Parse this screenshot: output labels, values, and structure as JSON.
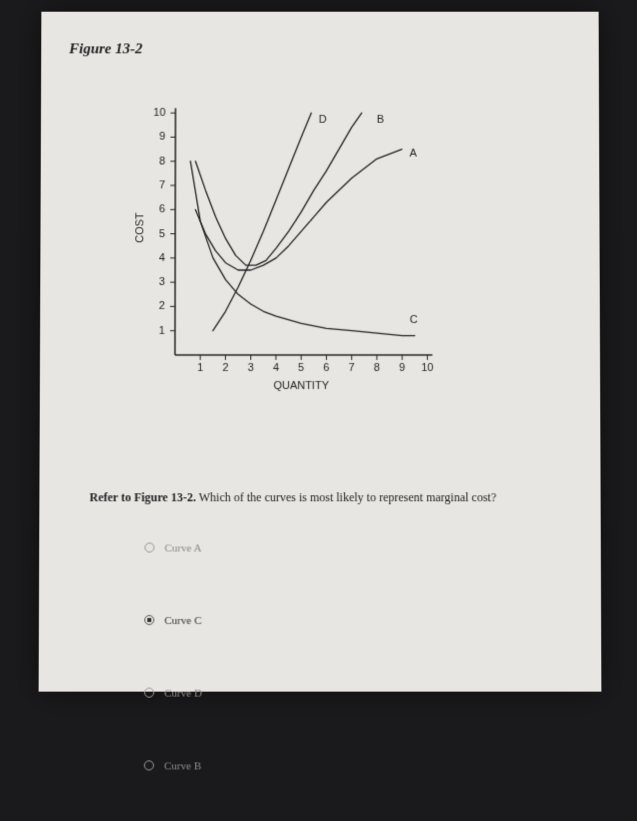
{
  "figure_title": "Figure 13-2",
  "question_prefix": "Refer to Figure 13-2.",
  "question_text": " Which of the curves is most likely to represent marginal cost?",
  "options": [
    {
      "label": "Curve A",
      "selected": false
    },
    {
      "label": "Curve C",
      "selected": true
    },
    {
      "label": "Curve D",
      "selected": false
    },
    {
      "label": "Curve B",
      "selected": false
    }
  ],
  "chart": {
    "type": "line",
    "xlim": [
      0,
      10.5
    ],
    "ylim": [
      0,
      10.5
    ],
    "xticks": [
      1,
      2,
      3,
      4,
      5,
      6,
      7,
      8,
      9,
      10
    ],
    "yticks": [
      1,
      2,
      3,
      4,
      5,
      6,
      7,
      8,
      9,
      10
    ],
    "xlabel": "QUANTITY",
    "ylabel": "COST",
    "label_fontsize": 11,
    "tick_fontsize": 10,
    "background_color": "#e8e6e2",
    "axis_color": "#222222",
    "line_color": "#222222",
    "line_width": 1.3,
    "tick_len": 5,
    "curves": {
      "A": {
        "label": "A",
        "label_pos": [
          9.3,
          8.2
        ],
        "points": [
          [
            0.8,
            6.0
          ],
          [
            1.2,
            5.0
          ],
          [
            1.6,
            4.3
          ],
          [
            2.0,
            3.8
          ],
          [
            2.5,
            3.5
          ],
          [
            3.0,
            3.5
          ],
          [
            3.5,
            3.7
          ],
          [
            4.0,
            4.0
          ],
          [
            4.5,
            4.5
          ],
          [
            5.0,
            5.1
          ],
          [
            5.5,
            5.7
          ],
          [
            6.0,
            6.3
          ],
          [
            7.0,
            7.3
          ],
          [
            8.0,
            8.1
          ],
          [
            9.0,
            8.5
          ]
        ]
      },
      "B": {
        "label": "B",
        "label_pos": [
          8.0,
          9.6
        ],
        "points": [
          [
            0.8,
            8.0
          ],
          [
            1.2,
            6.8
          ],
          [
            1.6,
            5.7
          ],
          [
            2.0,
            4.8
          ],
          [
            2.4,
            4.1
          ],
          [
            2.8,
            3.7
          ],
          [
            3.2,
            3.7
          ],
          [
            3.6,
            3.9
          ],
          [
            4.0,
            4.4
          ],
          [
            4.5,
            5.1
          ],
          [
            5.0,
            5.9
          ],
          [
            5.5,
            6.8
          ],
          [
            6.0,
            7.6
          ],
          [
            6.5,
            8.5
          ],
          [
            7.0,
            9.4
          ],
          [
            7.4,
            10.0
          ]
        ]
      },
      "C": {
        "label": "C",
        "label_pos": [
          9.3,
          1.3
        ],
        "points": [
          [
            0.6,
            8.0
          ],
          [
            1.0,
            5.5
          ],
          [
            1.5,
            4.0
          ],
          [
            2.0,
            3.1
          ],
          [
            2.5,
            2.5
          ],
          [
            3.0,
            2.1
          ],
          [
            3.5,
            1.8
          ],
          [
            4.0,
            1.6
          ],
          [
            5.0,
            1.3
          ],
          [
            6.0,
            1.1
          ],
          [
            7.0,
            1.0
          ],
          [
            8.0,
            0.9
          ],
          [
            9.0,
            0.8
          ],
          [
            9.5,
            0.8
          ]
        ]
      },
      "D": {
        "label": "D",
        "label_pos": [
          5.7,
          9.6
        ],
        "points": [
          [
            1.5,
            1.0
          ],
          [
            2.0,
            1.8
          ],
          [
            2.5,
            2.8
          ],
          [
            3.0,
            3.9
          ],
          [
            3.5,
            5.1
          ],
          [
            4.0,
            6.4
          ],
          [
            4.5,
            7.7
          ],
          [
            5.0,
            9.0
          ],
          [
            5.4,
            10.0
          ]
        ]
      }
    }
  }
}
